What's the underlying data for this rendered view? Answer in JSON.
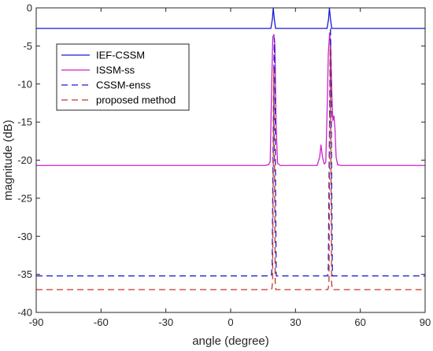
{
  "chart_data": {
    "type": "line",
    "xlabel": "angle (degree)",
    "ylabel": "magnitude (dB)",
    "xlim": [
      -90,
      90
    ],
    "ylim": [
      -40,
      0
    ],
    "xticks": [
      "-90",
      "-60",
      "-30",
      "0",
      "30",
      "60",
      "90"
    ],
    "yticks": [
      "0",
      "-5",
      "-10",
      "-15",
      "-20",
      "-25",
      "-30",
      "-35",
      "-40"
    ],
    "grid": false,
    "legend_position": "top-left",
    "series": [
      {
        "name": "IEF-CSSM",
        "color": "#1a1ad8",
        "style": "solid",
        "points": [
          [
            -90,
            -2.7
          ],
          [
            18.6,
            -2.7
          ],
          [
            19.3,
            -1.5
          ],
          [
            19.7,
            0
          ],
          [
            20.2,
            -1.5
          ],
          [
            20.8,
            -2.7
          ],
          [
            44.6,
            -2.7
          ],
          [
            45.3,
            -1.5
          ],
          [
            45.7,
            0
          ],
          [
            46.2,
            -1.5
          ],
          [
            46.8,
            -2.7
          ],
          [
            90,
            -2.7
          ]
        ]
      },
      {
        "name": "ISSM-ss",
        "color": "#cc22cc",
        "style": "solid",
        "points": [
          [
            -90,
            -20.7
          ],
          [
            16,
            -20.7
          ],
          [
            17.5,
            -20.6
          ],
          [
            18.3,
            -20.2
          ],
          [
            19.0,
            -10
          ],
          [
            19.5,
            -3.8
          ],
          [
            20.0,
            -3.5
          ],
          [
            20.5,
            -5
          ],
          [
            21.0,
            -15
          ],
          [
            21.7,
            -20.4
          ],
          [
            23,
            -20.7
          ],
          [
            40,
            -20.7
          ],
          [
            41.2,
            -19.6
          ],
          [
            41.8,
            -18
          ],
          [
            42.5,
            -19.6
          ],
          [
            43.3,
            -20.5
          ],
          [
            44.0,
            -20.3
          ],
          [
            44.6,
            -14
          ],
          [
            45.2,
            -6
          ],
          [
            45.8,
            -3.3
          ],
          [
            46.3,
            -5
          ],
          [
            46.9,
            -12
          ],
          [
            47.3,
            -14.8
          ],
          [
            47.8,
            -14.2
          ],
          [
            48.3,
            -16
          ],
          [
            48.8,
            -19.6
          ],
          [
            49.5,
            -20.6
          ],
          [
            51,
            -20.7
          ],
          [
            90,
            -20.7
          ]
        ]
      },
      {
        "name": "CSSM-enss",
        "color": "#1f1fd0",
        "style": "dashed",
        "points": [
          [
            -90,
            -35.2
          ],
          [
            18.8,
            -35.2
          ],
          [
            19.2,
            -34
          ],
          [
            19.6,
            -20
          ],
          [
            19.9,
            -10
          ],
          [
            20.2,
            -4
          ],
          [
            20.5,
            -10
          ],
          [
            20.8,
            -25
          ],
          [
            21.1,
            -35.2
          ],
          [
            44.9,
            -35.2
          ],
          [
            45.2,
            -34
          ],
          [
            45.6,
            -20
          ],
          [
            45.9,
            -10
          ],
          [
            46.2,
            -2.5
          ],
          [
            46.5,
            -10
          ],
          [
            46.8,
            -25
          ],
          [
            47.1,
            -35.2
          ],
          [
            90,
            -35.2
          ]
        ]
      },
      {
        "name": "proposed method",
        "color": "#c0392b",
        "style": "dashed",
        "points": [
          [
            -90,
            -37
          ],
          [
            18.8,
            -37
          ],
          [
            19.1,
            -36.8
          ],
          [
            19.4,
            -36
          ],
          [
            19.7,
            -22
          ],
          [
            20.0,
            -8
          ],
          [
            20.3,
            -20
          ],
          [
            20.6,
            -36
          ],
          [
            20.9,
            -37
          ],
          [
            44.9,
            -37
          ],
          [
            45.2,
            -36.8
          ],
          [
            45.5,
            -36
          ],
          [
            45.8,
            -22
          ],
          [
            46.1,
            -5
          ],
          [
            46.4,
            -20
          ],
          [
            46.7,
            -36
          ],
          [
            47.0,
            -37
          ],
          [
            90,
            -37
          ]
        ]
      }
    ]
  }
}
